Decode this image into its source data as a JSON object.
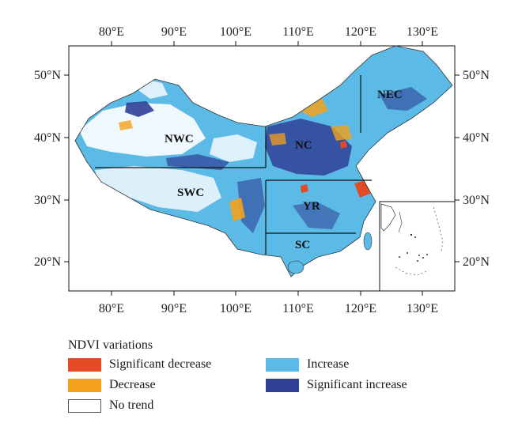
{
  "map": {
    "lon_ticks": [
      "80°E",
      "90°E",
      "100°E",
      "110°E",
      "120°E",
      "130°E"
    ],
    "lat_ticks": [
      "50°N",
      "40°N",
      "30°N",
      "20°N"
    ],
    "regions": [
      "NEC",
      "NWC",
      "NC",
      "SWC",
      "YR",
      "SC"
    ],
    "colors": {
      "significant_decrease": "#e34a26",
      "decrease": "#f4a21c",
      "no_trend": "#ffffff",
      "increase": "#5bbbe6",
      "significant_increase": "#2f3f96"
    }
  },
  "legend": {
    "title": "NDVI variations",
    "items": [
      {
        "label": "Significant decrease",
        "color": "#e34a26"
      },
      {
        "label": "Increase",
        "color": "#5bbbe6"
      },
      {
        "label": "Decrease",
        "color": "#f4a21c"
      },
      {
        "label": "Significant increase",
        "color": "#2f3f96"
      },
      {
        "label": "No trend",
        "color": "#ffffff"
      }
    ]
  }
}
